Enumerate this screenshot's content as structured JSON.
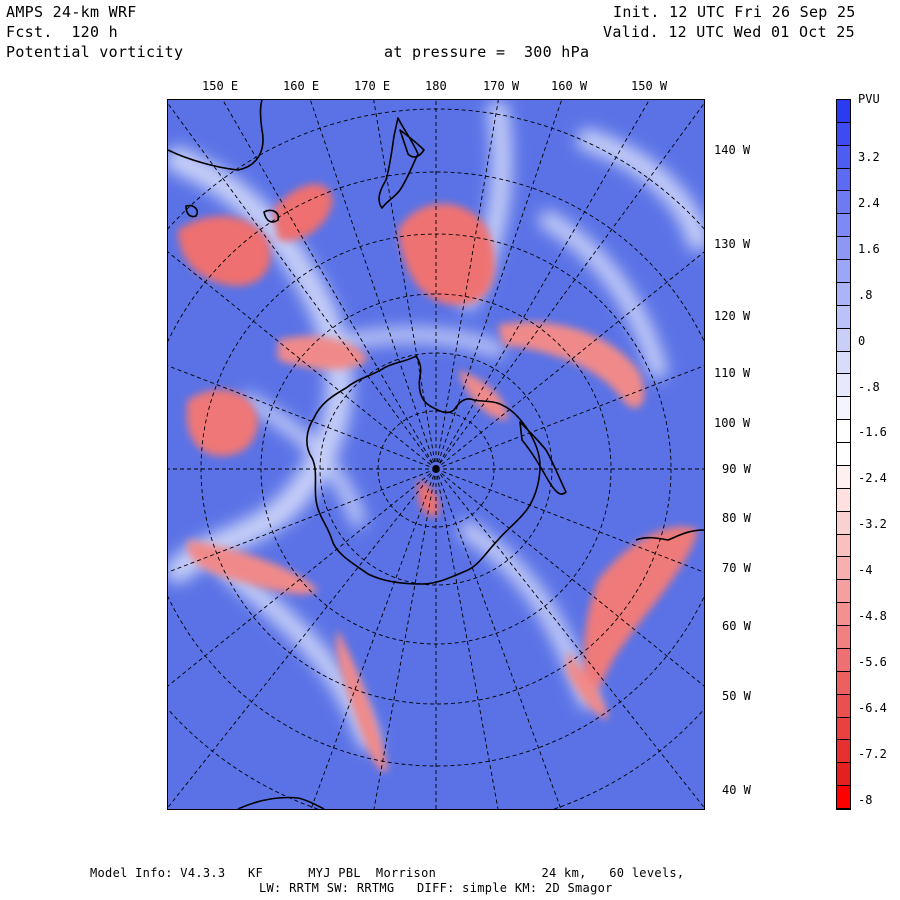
{
  "header": {
    "model": "AMPS 24-km WRF",
    "forecast": "Fcst.  120 h",
    "field": "Potential vorticity",
    "level": "at pressure =  300 hPa",
    "init": "Init. 12 UTC Fri 26 Sep 25",
    "valid": "Valid. 12 UTC Wed 01 Oct 25"
  },
  "map": {
    "top_labels": [
      "150 E",
      "160 E",
      "170 E",
      "180",
      "170 W",
      "160 W",
      "150 W"
    ],
    "right_labels": [
      "140 W",
      "130 W",
      "120 W",
      "110 W",
      "100 W",
      "90 W",
      "80 W",
      "70 W",
      "60 W",
      "50 W",
      "40 W"
    ]
  },
  "colorbar": {
    "unit": "PVU",
    "labels": [
      "3.2",
      "2.4",
      "1.6",
      ".8",
      "0",
      "-.8",
      "-1.6",
      "-2.4",
      "-3.2",
      "-4",
      "-4.8",
      "-5.6",
      "-6.4",
      "-7.2",
      "-8"
    ],
    "colors": [
      "#2b3cf0",
      "#3c4cf0",
      "#4d5cf1",
      "#5d6bf2",
      "#6d7af3",
      "#7d89f4",
      "#8d98f5",
      "#9ca6f6",
      "#abb4f7",
      "#bac2f8",
      "#c9cff9",
      "#d8dcfb",
      "#e6e9fc",
      "#f3f4fe",
      "#ffffff",
      "#ffffff",
      "#fff0f0",
      "#fde0e0",
      "#fbd0d0",
      "#f9c0c0",
      "#f7b0b0",
      "#f5a0a0",
      "#f39090",
      "#f18080",
      "#ef7070",
      "#ed6060",
      "#eb5050",
      "#e94040",
      "#e73030",
      "#e52020",
      "#ff0000"
    ]
  },
  "footer": {
    "line1": "Model Info: V4.3.3   KF      MYJ PBL  Morrison              24 km,   60 levels,",
    "line2": "LW: RRTM SW: RRTMG   DIFF: simple KM: 2D Smagor"
  }
}
